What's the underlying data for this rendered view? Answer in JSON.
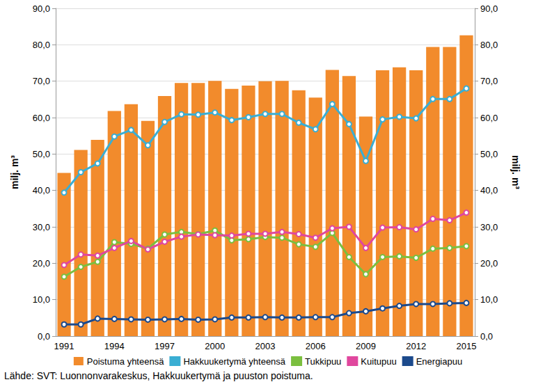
{
  "chart_data": {
    "type": "bar",
    "categories": [
      "1991",
      null,
      null,
      "1994",
      null,
      null,
      "1997",
      null,
      null,
      "2000",
      null,
      null,
      "2003",
      null,
      null,
      "2006",
      null,
      null,
      "2009",
      null,
      null,
      "2012",
      null,
      null,
      "2015"
    ],
    "series": [
      {
        "name": "Poistuma yhteensä",
        "type": "bar",
        "color": "#f28b2c",
        "values": [
          44.8,
          51.1,
          53.9,
          61.8,
          63.7,
          59.1,
          65.9,
          69.5,
          69.5,
          70.1,
          67.9,
          68.8,
          70.0,
          70.1,
          67.5,
          65.5,
          73.1,
          71.4,
          60.3,
          73.0,
          73.8,
          73.0,
          79.4,
          79.4,
          82.6
        ]
      },
      {
        "name": "Hakkuukertymä yhteensä",
        "type": "line",
        "marker": "circle",
        "color": "#3aaed3",
        "values": [
          39.4,
          45.0,
          47.4,
          54.8,
          56.6,
          52.4,
          58.8,
          60.9,
          60.8,
          61.4,
          59.3,
          60.1,
          61.0,
          61.0,
          58.6,
          56.8,
          63.7,
          58.2,
          48.1,
          59.5,
          60.2,
          59.8,
          65.1,
          65.1,
          68.0
        ]
      },
      {
        "name": "Tukkipuu",
        "type": "line",
        "marker": "circle",
        "color": "#7bbf3f",
        "values": [
          16.3,
          19.0,
          20.4,
          25.8,
          25.3,
          24.0,
          27.9,
          28.6,
          28.0,
          29.0,
          26.3,
          26.6,
          27.2,
          27.0,
          25.2,
          24.5,
          28.3,
          21.7,
          17.0,
          21.7,
          21.9,
          21.5,
          24.0,
          24.2,
          24.7
        ]
      },
      {
        "name": "Kuitupuu",
        "type": "line",
        "marker": "circle",
        "color": "#e0479e",
        "values": [
          19.5,
          22.4,
          22.1,
          24.2,
          26.1,
          23.8,
          25.9,
          27.3,
          27.9,
          27.7,
          27.6,
          28.1,
          28.1,
          28.6,
          28.0,
          27.0,
          29.6,
          30.0,
          24.2,
          29.8,
          29.9,
          29.3,
          32.2,
          31.8,
          33.9
        ]
      },
      {
        "name": "Energiapuu",
        "type": "line",
        "marker": "circle",
        "color": "#1c4a8c",
        "values": [
          3.2,
          3.2,
          4.8,
          4.7,
          4.6,
          4.5,
          4.6,
          4.7,
          4.5,
          4.6,
          5.1,
          5.1,
          5.2,
          5.1,
          5.1,
          5.2,
          5.2,
          6.3,
          6.8,
          7.6,
          8.3,
          8.8,
          8.8,
          9.0,
          9.1
        ]
      }
    ],
    "ylabel": "milj. m³",
    "y2label": "milj. m³",
    "ylim": [
      0,
      90
    ],
    "yticks": [
      {
        "value": 0,
        "label": "0,0"
      },
      {
        "value": 10,
        "label": "10,0"
      },
      {
        "value": 20,
        "label": "20,0"
      },
      {
        "value": 30,
        "label": "30,0"
      },
      {
        "value": 40,
        "label": "40,0"
      },
      {
        "value": 50,
        "label": "50,0"
      },
      {
        "value": 60,
        "label": "60,0"
      },
      {
        "value": 70,
        "label": "70,0"
      },
      {
        "value": 80,
        "label": "80,0"
      },
      {
        "value": 90,
        "label": "90,0"
      }
    ],
    "y2lim": [
      0,
      90
    ],
    "y2ticks": [
      {
        "value": 0,
        "label": "0,0"
      },
      {
        "value": 10,
        "label": "10,0"
      },
      {
        "value": 20,
        "label": "20,0"
      },
      {
        "value": 30,
        "label": "30,0"
      },
      {
        "value": 40,
        "label": "40,0"
      },
      {
        "value": 50,
        "label": "50,0"
      },
      {
        "value": 60,
        "label": "60,0"
      },
      {
        "value": 70,
        "label": "70,0"
      },
      {
        "value": 80,
        "label": "80,0"
      },
      {
        "value": 90,
        "label": "90,0"
      }
    ],
    "annotations": [
      "Lähde: SVT: Luonnonvarakeskus, Hakkuukertymä ja puuston poistuma."
    ],
    "grid": true,
    "legend": "bottom"
  }
}
